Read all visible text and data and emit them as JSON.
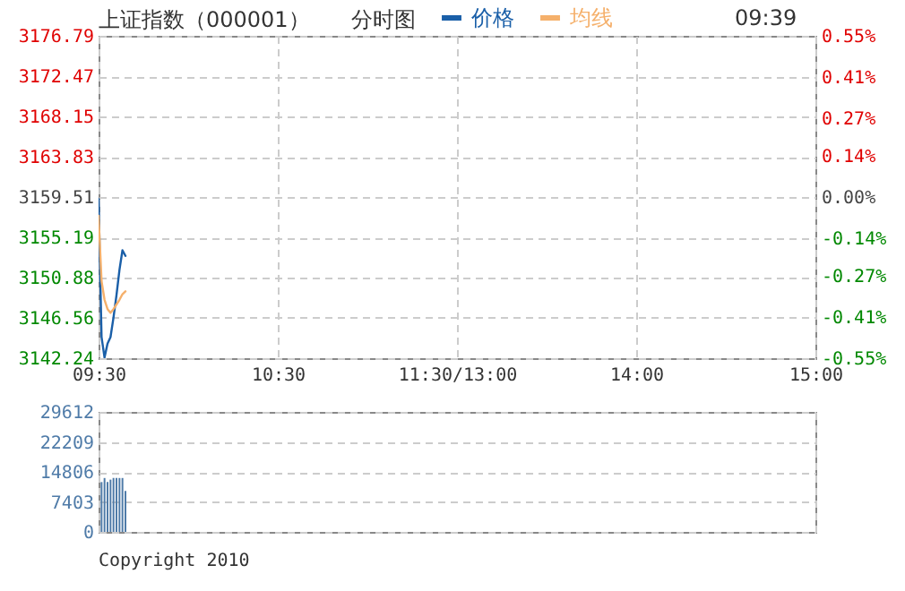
{
  "chart_data": [
    {
      "type": "line",
      "title": "上证指数（000001）",
      "annotations": [
        "分时图",
        "09:39"
      ],
      "categories": [
        "09:30",
        null,
        null,
        null,
        null,
        null,
        null,
        null,
        null,
        null,
        null,
        null,
        null,
        null,
        null,
        null,
        null,
        null,
        null,
        null,
        null,
        null,
        null,
        null,
        null,
        null,
        null,
        null,
        null,
        null,
        null,
        null,
        null,
        null,
        null,
        null,
        null,
        null,
        null,
        null,
        null,
        null,
        null,
        null,
        null,
        null,
        null,
        null,
        null,
        null,
        null,
        null,
        null,
        null,
        null,
        null,
        null,
        null,
        null,
        null,
        "10:30",
        null,
        null,
        null,
        null,
        null,
        null,
        null,
        null,
        null,
        null,
        null,
        null,
        null,
        null,
        null,
        null,
        null,
        null,
        null,
        null,
        null,
        null,
        null,
        null,
        null,
        null,
        null,
        null,
        null,
        null,
        null,
        null,
        null,
        null,
        null,
        null,
        null,
        null,
        null,
        null,
        null,
        null,
        null,
        null,
        null,
        null,
        null,
        null,
        null,
        null,
        null,
        null,
        null,
        null,
        null,
        null,
        null,
        null,
        null,
        "11:30/13:00",
        null,
        null,
        null,
        null,
        null,
        null,
        null,
        null,
        null,
        null,
        null,
        null,
        null,
        null,
        null,
        null,
        null,
        null,
        null,
        null,
        null,
        null,
        null,
        null,
        null,
        null,
        null,
        null,
        null,
        null,
        null,
        null,
        null,
        null,
        null,
        null,
        null,
        null,
        null,
        null,
        null,
        null,
        null,
        null,
        null,
        null,
        null,
        null,
        null,
        null,
        null,
        null,
        null,
        null,
        null,
        null,
        null,
        null,
        null,
        "14:00",
        null,
        null,
        null,
        null,
        null,
        null,
        null,
        null,
        null,
        null,
        null,
        null,
        null,
        null,
        null,
        null,
        null,
        null,
        null,
        null,
        null,
        null,
        null,
        null,
        null,
        null,
        null,
        null,
        null,
        null,
        null,
        null,
        null,
        null,
        null,
        null,
        null,
        null,
        null,
        null,
        null,
        null,
        null,
        null,
        null,
        null,
        null,
        null,
        null,
        null,
        null,
        null,
        null,
        null,
        null,
        null,
        null,
        null,
        null,
        "15:00"
      ],
      "series": [
        {
          "name": "价格",
          "color": "#1a5fa8",
          "values": [
            3159.3,
            3144.5,
            3142.3,
            3143.8,
            3144.5,
            3146.6,
            3149.0,
            3151.7,
            3153.8,
            3153.2,
            null,
            null,
            null,
            null,
            null,
            null,
            null,
            null,
            null,
            null,
            null,
            null,
            null,
            null,
            null,
            null,
            null,
            null,
            null,
            null,
            null,
            null,
            null,
            null,
            null,
            null,
            null,
            null,
            null,
            null,
            null,
            null,
            null,
            null,
            null,
            null,
            null,
            null,
            null,
            null,
            null,
            null,
            null,
            null,
            null,
            null,
            null,
            null,
            null,
            null,
            null,
            null,
            null,
            null,
            null,
            null,
            null,
            null,
            null,
            null,
            null,
            null,
            null,
            null,
            null,
            null,
            null,
            null,
            null,
            null,
            null,
            null,
            null,
            null,
            null,
            null,
            null,
            null,
            null,
            null,
            null,
            null,
            null,
            null,
            null,
            null,
            null,
            null,
            null,
            null,
            null,
            null,
            null,
            null,
            null,
            null,
            null,
            null,
            null,
            null,
            null,
            null,
            null,
            null,
            null,
            null,
            null,
            null,
            null,
            null,
            null,
            null,
            null,
            null,
            null,
            null,
            null,
            null,
            null,
            null,
            null,
            null,
            null,
            null,
            null,
            null,
            null,
            null,
            null,
            null,
            null,
            null,
            null,
            null,
            null,
            null,
            null,
            null,
            null,
            null,
            null,
            null,
            null,
            null,
            null,
            null,
            null,
            null,
            null,
            null,
            null,
            null,
            null,
            null,
            null,
            null,
            null,
            null,
            null,
            null,
            null,
            null,
            null,
            null,
            null,
            null,
            null,
            null,
            null,
            null,
            null,
            null,
            null,
            null,
            null,
            null,
            null,
            null,
            null,
            null,
            null,
            null,
            null,
            null,
            null,
            null,
            null,
            null,
            null,
            null,
            null,
            null,
            null,
            null,
            null,
            null,
            null,
            null,
            null,
            null,
            null,
            null,
            null,
            null,
            null,
            null,
            null,
            null,
            null,
            null,
            null,
            null,
            null,
            null,
            null,
            null,
            null,
            null,
            null,
            null,
            null,
            null,
            null,
            null,
            null,
            null,
            null,
            null,
            null,
            null,
            null
          ]
        },
        {
          "name": "均线",
          "color": "#f5b06b",
          "values": [
            3157.5,
            3150.5,
            3148.5,
            3147.5,
            3147.1,
            3147.5,
            3148.0,
            3148.5,
            3149.1,
            3149.4,
            null,
            null,
            null,
            null,
            null,
            null,
            null,
            null,
            null,
            null,
            null,
            null,
            null,
            null,
            null,
            null,
            null,
            null,
            null,
            null,
            null,
            null,
            null,
            null,
            null,
            null,
            null,
            null,
            null,
            null,
            null,
            null,
            null,
            null,
            null,
            null,
            null,
            null,
            null,
            null,
            null,
            null,
            null,
            null,
            null,
            null,
            null,
            null,
            null,
            null,
            null,
            null,
            null,
            null,
            null,
            null,
            null,
            null,
            null,
            null,
            null,
            null,
            null,
            null,
            null,
            null,
            null,
            null,
            null,
            null,
            null,
            null,
            null,
            null,
            null,
            null,
            null,
            null,
            null,
            null,
            null,
            null,
            null,
            null,
            null,
            null,
            null,
            null,
            null,
            null,
            null,
            null,
            null,
            null,
            null,
            null,
            null,
            null,
            null,
            null,
            null,
            null,
            null,
            null,
            null,
            null,
            null,
            null,
            null,
            null,
            null,
            null,
            null,
            null,
            null,
            null,
            null,
            null,
            null,
            null,
            null,
            null,
            null,
            null,
            null,
            null,
            null,
            null,
            null,
            null,
            null,
            null,
            null,
            null,
            null,
            null,
            null,
            null,
            null,
            null,
            null,
            null,
            null,
            null,
            null,
            null,
            null,
            null,
            null,
            null,
            null,
            null,
            null,
            null,
            null,
            null,
            null,
            null,
            null,
            null,
            null,
            null,
            null,
            null,
            null,
            null,
            null,
            null,
            null,
            null,
            null,
            null,
            null,
            null,
            null,
            null,
            null,
            null,
            null,
            null,
            null,
            null,
            null,
            null,
            null,
            null,
            null,
            null,
            null,
            null,
            null,
            null,
            null,
            null,
            null,
            null,
            null,
            null,
            null,
            null,
            null,
            null,
            null,
            null,
            null,
            null,
            null,
            null,
            null,
            null,
            null,
            null,
            null,
            null,
            null,
            null,
            null,
            null,
            null,
            null,
            null,
            null,
            null,
            null,
            null,
            null,
            null,
            null,
            null,
            null,
            null
          ]
        }
      ],
      "ylim": [
        3142.24,
        3176.79
      ],
      "yticks": [
        3142.24,
        3146.56,
        3150.88,
        3155.19,
        3159.51,
        3163.83,
        3168.15,
        3172.47,
        3176.79
      ],
      "y2lim": [
        -0.55,
        0.55
      ],
      "y2ticks": [
        {
          "value": -0.55,
          "label": "-0.55%"
        },
        {
          "value": -0.41,
          "label": "-0.41%"
        },
        {
          "value": -0.27,
          "label": "-0.27%"
        },
        {
          "value": -0.14,
          "label": "-0.14%"
        },
        {
          "value": 0,
          "label": "0.00%"
        },
        {
          "value": 0.14,
          "label": "0.14%"
        },
        {
          "value": 0.27,
          "label": "0.27%"
        },
        {
          "value": 0.41,
          "label": "0.41%"
        },
        {
          "value": 0.55,
          "label": "0.55%"
        }
      ],
      "grid": true,
      "legend": "top"
    },
    {
      "type": "bar",
      "annotations": [
        "Copyright 2010"
      ],
      "categories": [
        null,
        null,
        null,
        null,
        null,
        null,
        null,
        null,
        null,
        null,
        null,
        null,
        null,
        null,
        null,
        null,
        null,
        null,
        null,
        null,
        null,
        null,
        null,
        null,
        null,
        null,
        null,
        null,
        null,
        null,
        null,
        null,
        null,
        null,
        null,
        null,
        null,
        null,
        null,
        null,
        null,
        null,
        null,
        null,
        null,
        null,
        null,
        null,
        null,
        null,
        null,
        null,
        null,
        null,
        null,
        null,
        null,
        null,
        null,
        null,
        null,
        null,
        null,
        null,
        null,
        null,
        null,
        null,
        null,
        null,
        null,
        null,
        null,
        null,
        null,
        null,
        null,
        null,
        null,
        null,
        null,
        null,
        null,
        null,
        null,
        null,
        null,
        null,
        null,
        null,
        null,
        null,
        null,
        null,
        null,
        null,
        null,
        null,
        null,
        null,
        null,
        null,
        null,
        null,
        null,
        null,
        null,
        null,
        null,
        null,
        null,
        null,
        null,
        null,
        null,
        null,
        null,
        null,
        null,
        null,
        null,
        null,
        null,
        null,
        null,
        null,
        null,
        null,
        null,
        null,
        null,
        null,
        null,
        null,
        null,
        null,
        null,
        null,
        null,
        null,
        null,
        null,
        null,
        null,
        null,
        null,
        null,
        null,
        null,
        null,
        null,
        null,
        null,
        null,
        null,
        null,
        null,
        null,
        null,
        null,
        null,
        null,
        null,
        null,
        null,
        null,
        null,
        null,
        null,
        null,
        null,
        null,
        null,
        null,
        null,
        null,
        null,
        null,
        null,
        null,
        null,
        null,
        null,
        null,
        null,
        null,
        null,
        null,
        null,
        null,
        null,
        null,
        null,
        null,
        null,
        null,
        null,
        null,
        null,
        null,
        null,
        null,
        null,
        null,
        null,
        null,
        null,
        null,
        null,
        null,
        null,
        null,
        null,
        null,
        null,
        null,
        null,
        null,
        null,
        null,
        null,
        null,
        null,
        null,
        null,
        null,
        null,
        null,
        null,
        null,
        null,
        null,
        null,
        null,
        null,
        null,
        null,
        null,
        null,
        null,
        null
      ],
      "values": [
        null,
        12300,
        13300,
        12300,
        12900,
        13300,
        13300,
        13300,
        13300,
        10100,
        null,
        null,
        null,
        null,
        null,
        null,
        null,
        null,
        null,
        null,
        null,
        null,
        null,
        null,
        null,
        null,
        null,
        null,
        null,
        null,
        null,
        null,
        null,
        null,
        null,
        null,
        null,
        null,
        null,
        null,
        null,
        null,
        null,
        null,
        null,
        null,
        null,
        null,
        null,
        null,
        null,
        null,
        null,
        null,
        null,
        null,
        null,
        null,
        null,
        null,
        null,
        null,
        null,
        null,
        null,
        null,
        null,
        null,
        null,
        null,
        null,
        null,
        null,
        null,
        null,
        null,
        null,
        null,
        null,
        null,
        null,
        null,
        null,
        null,
        null,
        null,
        null,
        null,
        null,
        null,
        null,
        null,
        null,
        null,
        null,
        null,
        null,
        null,
        null,
        null,
        null,
        null,
        null,
        null,
        null,
        null,
        null,
        null,
        null,
        null,
        null,
        null,
        null,
        null,
        null,
        null,
        null,
        null,
        null,
        null,
        null,
        null,
        null,
        null,
        null,
        null,
        null,
        null,
        null,
        null,
        null,
        null,
        null,
        null,
        null,
        null,
        null,
        null,
        null,
        null,
        null,
        null,
        null,
        null,
        null,
        null,
        null,
        null,
        null,
        null,
        null,
        null,
        null,
        null,
        null,
        null,
        null,
        null,
        null,
        null,
        null,
        null,
        null,
        null,
        null,
        null,
        null,
        null,
        null,
        null,
        null,
        null,
        null,
        null,
        null,
        null,
        null,
        null,
        null,
        null,
        null,
        null,
        null,
        null,
        null,
        null,
        null,
        null,
        null,
        null,
        null,
        null,
        null,
        null,
        null,
        null,
        null,
        null,
        null,
        null,
        null,
        null,
        null,
        null,
        null,
        null,
        null,
        null,
        null,
        null,
        null,
        null,
        null,
        null,
        null,
        null,
        null,
        null,
        null,
        null,
        null,
        null,
        null,
        null,
        null,
        null,
        null,
        null,
        null,
        null,
        null,
        null,
        null,
        null,
        null,
        null,
        null,
        null,
        null,
        null,
        null
      ],
      "color": "#4f7ba8",
      "ylim": [
        0,
        29612
      ],
      "yticks": [
        0,
        7403,
        14806,
        22209,
        29612
      ],
      "grid": true,
      "tick_labels": "y"
    }
  ]
}
